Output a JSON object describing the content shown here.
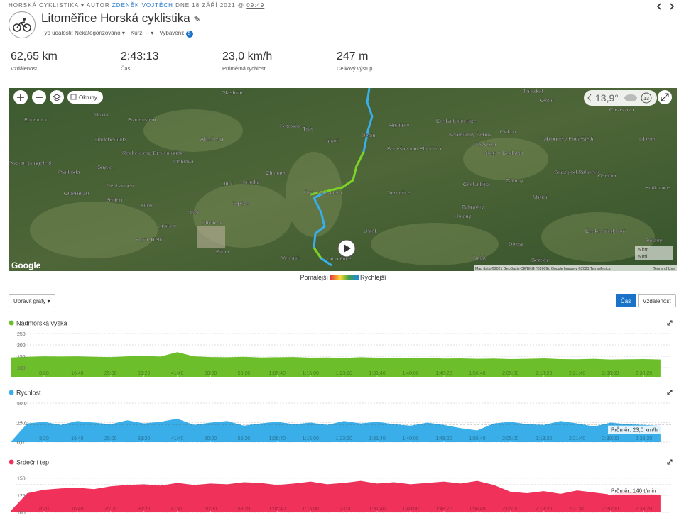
{
  "header": {
    "breadcrumb": {
      "activity_type": "HORSKÁ CYKLISTIKA ▾",
      "author_prefix": "AUTOR",
      "author": "ZDENĚK VOJTĚCH",
      "date": "DNE 18 ZÁŘÍ 2021 @",
      "time": "09:49"
    },
    "title": "Litoměřice Horská cyklistika",
    "meta": {
      "event_type": "Typ události: Nekategorizováno ▾",
      "course": "Kurz: -- ▾",
      "gear": "Vybavení:",
      "gear_count": "5"
    }
  },
  "stats": [
    {
      "value": "62,65 km",
      "label": "Vzdálenost"
    },
    {
      "value": "2:43:13",
      "label": "Čas"
    },
    {
      "value": "23,0 km/h",
      "label": "Průměrná rychlost"
    },
    {
      "value": "247 m",
      "label": "Celkový výstup"
    }
  ],
  "map": {
    "labels": [
      "Glashütte",
      "Eppendorf",
      "Mulda",
      "Frauenstein",
      "Dorfchemnitz",
      "Rechenberg-Bienenmühle",
      "Altenberg",
      "Petrovice",
      "Tisá",
      "Jílové",
      "Děčín",
      "Huntířov",
      "Benešov nad Ploučnicí",
      "Česká Kamenice",
      "Kamenický Šenov",
      "Cvikov",
      "Nový Bor",
      "Sloup v Čechách",
      "Jablonné v Podještědí",
      "Liberec",
      "Chrastava",
      "Jonsdorf",
      "Oybin",
      "Chlumec",
      "Krupka",
      "Dubí",
      "Teplice",
      "Ústí nad Labem",
      "Verneřice",
      "Česká Lípa",
      "Zákupy",
      "Mimoň",
      "Stráž pod Ralskem",
      "Osečná",
      "Hodkovice",
      "Osek",
      "Duchcov",
      "Bílina",
      "Litvínov",
      "Klíny",
      "Sayda",
      "Neuhausen",
      "Seiffen",
      "Olbernhau",
      "Pfaffroda",
      "Pockau-Lengefeld",
      "Velemín",
      "Litoměřice",
      "Úštěk",
      "Zahrádky",
      "Holany",
      "Dubá",
      "Doksy",
      "Bezděz",
      "Svijany",
      "České středohoří",
      "Moldava",
      "Horní Jiřetín"
    ],
    "layers": "Okruhy",
    "weather": "13,9°",
    "weather_badge": "13",
    "google": "Google",
    "scale_km": "5 km",
    "scale_mi": "5 mi",
    "attribution": "Map data ©2021 GeoBasis-DE/BKG (©2009), Google Imagery ©2021 TerraMetrics",
    "terms": "Terms of Use"
  },
  "legend": {
    "slow": "Pomalejší",
    "fast": "Rychlejší"
  },
  "controls": {
    "edit": "Upravit grafy ▾",
    "time": "Čas",
    "distance": "Vzdálenost"
  },
  "chart_data": [
    {
      "type": "area",
      "title": "Nadmořská výška",
      "color": "#6cbf2a",
      "x": [
        0,
        250,
        500,
        750,
        1000,
        1250,
        1500,
        1750,
        2000,
        2250,
        2500,
        2750,
        3000,
        3250,
        3500,
        3750,
        4000,
        4250,
        4500,
        4750,
        5000,
        5250,
        5500,
        5750,
        6000,
        6250,
        6500,
        6750,
        7000,
        7250,
        7500,
        7750,
        8000,
        8250,
        8500,
        8750,
        9000,
        9250,
        9500,
        9750
      ],
      "values": [
        145,
        148,
        150,
        149,
        150,
        148,
        147,
        150,
        152,
        149,
        168,
        150,
        147,
        146,
        148,
        145,
        146,
        147,
        144,
        145,
        143,
        146,
        144,
        142,
        141,
        143,
        140,
        141,
        139,
        140,
        138,
        139,
        141,
        138,
        137,
        139,
        136,
        137,
        138,
        136
      ],
      "xlim": [
        0,
        9900
      ],
      "ylim": [
        60,
        250
      ],
      "yticks": [
        100,
        150,
        200,
        250
      ],
      "xticks": [
        {
          "value": 500,
          "label": "8:20"
        },
        {
          "value": 1000,
          "label": "16:40"
        },
        {
          "value": 1500,
          "label": "25:00"
        },
        {
          "value": 2000,
          "label": "33:20"
        },
        {
          "value": 2500,
          "label": "41:40"
        },
        {
          "value": 3000,
          "label": "50:00"
        },
        {
          "value": 3500,
          "label": "58:20"
        },
        {
          "value": 4000,
          "label": "1:06:40"
        },
        {
          "value": 4500,
          "label": "1:15:00"
        },
        {
          "value": 5000,
          "label": "1:23:20"
        },
        {
          "value": 5500,
          "label": "1:31:40"
        },
        {
          "value": 6000,
          "label": "1:40:00"
        },
        {
          "value": 6500,
          "label": "1:48:20"
        },
        {
          "value": 7000,
          "label": "1:56:40"
        },
        {
          "value": 7500,
          "label": "2:05:00"
        },
        {
          "value": 8000,
          "label": "2:13:20"
        },
        {
          "value": 8500,
          "label": "2:21:40"
        },
        {
          "value": 9000,
          "label": "2:30:00"
        },
        {
          "value": 9500,
          "label": "2:38:20"
        }
      ]
    },
    {
      "type": "area",
      "title": "Rychlost",
      "color": "#3aaee8",
      "x": [
        0,
        250,
        500,
        750,
        1000,
        1250,
        1500,
        1750,
        2000,
        2250,
        2500,
        2750,
        3000,
        3250,
        3500,
        3750,
        4000,
        4250,
        4500,
        4750,
        5000,
        5250,
        5500,
        5750,
        6000,
        6250,
        6500,
        6750,
        7000,
        7250,
        7500,
        7750,
        8000,
        8250,
        8500,
        8750,
        9000,
        9250,
        9500,
        9750
      ],
      "values": [
        0,
        24,
        26,
        22,
        27,
        25,
        23,
        28,
        24,
        26,
        30,
        22,
        25,
        27,
        21,
        24,
        26,
        23,
        25,
        22,
        27,
        24,
        26,
        23,
        21,
        25,
        22,
        18,
        15,
        24,
        26,
        23,
        22,
        27,
        24,
        20,
        25,
        23,
        22,
        21
      ],
      "xlim": [
        0,
        9900
      ],
      "ylim": [
        0,
        50
      ],
      "yticks": [
        {
          "value": 0,
          "label": "0,0"
        },
        {
          "value": 25,
          "label": "25,0"
        },
        {
          "value": 50,
          "label": "50,0"
        }
      ],
      "average": 23,
      "average_label": "Průměr: 23,0 km/h",
      "xticks": [
        {
          "value": 500,
          "label": "8:20"
        },
        {
          "value": 1000,
          "label": "16:40"
        },
        {
          "value": 1500,
          "label": "25:00"
        },
        {
          "value": 2000,
          "label": "33:20"
        },
        {
          "value": 2500,
          "label": "41:40"
        },
        {
          "value": 3000,
          "label": "50:00"
        },
        {
          "value": 3500,
          "label": "58:20"
        },
        {
          "value": 4000,
          "label": "1:06:40"
        },
        {
          "value": 4500,
          "label": "1:15:00"
        },
        {
          "value": 5000,
          "label": "1:23:20"
        },
        {
          "value": 5500,
          "label": "1:31:40"
        },
        {
          "value": 6000,
          "label": "1:40:00"
        },
        {
          "value": 6500,
          "label": "1:48:20"
        },
        {
          "value": 7000,
          "label": "1:56:40"
        },
        {
          "value": 7500,
          "label": "2:05:00"
        },
        {
          "value": 8000,
          "label": "2:13:20"
        },
        {
          "value": 8500,
          "label": "2:21:40"
        },
        {
          "value": 9000,
          "label": "2:30:00"
        },
        {
          "value": 9500,
          "label": "2:38:20"
        }
      ]
    },
    {
      "type": "area",
      "title": "Srdeční tep",
      "color": "#f0325a",
      "x": [
        0,
        250,
        500,
        750,
        1000,
        1250,
        1500,
        1750,
        2000,
        2250,
        2500,
        2750,
        3000,
        3250,
        3500,
        3750,
        4000,
        4250,
        4500,
        4750,
        5000,
        5250,
        5500,
        5750,
        6000,
        6250,
        6500,
        6750,
        7000,
        7250,
        7500,
        7750,
        8000,
        8250,
        8500,
        8750,
        9000,
        9250,
        9500,
        9750
      ],
      "values": [
        102,
        128,
        133,
        135,
        136,
        134,
        138,
        140,
        141,
        139,
        143,
        140,
        142,
        141,
        144,
        143,
        140,
        142,
        145,
        141,
        143,
        146,
        142,
        144,
        141,
        143,
        145,
        142,
        146,
        140,
        130,
        128,
        131,
        127,
        132,
        129,
        126,
        130,
        128,
        126
      ],
      "xlim": [
        0,
        9900
      ],
      "ylim": [
        100,
        158
      ],
      "yticks": [
        100,
        125,
        150
      ],
      "average": 140,
      "average_label": "Průměr: 140 t/min",
      "xticks": [
        {
          "value": 500,
          "label": "8:20"
        },
        {
          "value": 1000,
          "label": "16:40"
        },
        {
          "value": 1500,
          "label": "25:00"
        },
        {
          "value": 2000,
          "label": "33:20"
        },
        {
          "value": 2500,
          "label": "41:40"
        },
        {
          "value": 3000,
          "label": "50:00"
        },
        {
          "value": 3500,
          "label": "58:20"
        },
        {
          "value": 4000,
          "label": "1:06:40"
        },
        {
          "value": 4500,
          "label": "1:15:00"
        },
        {
          "value": 5000,
          "label": "1:23:20"
        },
        {
          "value": 5500,
          "label": "1:31:40"
        },
        {
          "value": 6000,
          "label": "1:40:00"
        },
        {
          "value": 6500,
          "label": "1:48:20"
        },
        {
          "value": 7000,
          "label": "1:56:40"
        },
        {
          "value": 7500,
          "label": "2:05:00"
        },
        {
          "value": 8000,
          "label": "2:13:20"
        },
        {
          "value": 8500,
          "label": "2:21:40"
        },
        {
          "value": 9000,
          "label": "2:30:00"
        },
        {
          "value": 9500,
          "label": "2:38:20"
        }
      ]
    }
  ]
}
